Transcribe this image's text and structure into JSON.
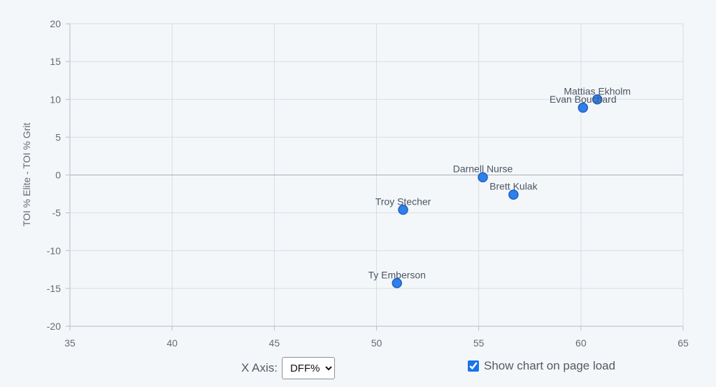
{
  "chart_data": {
    "type": "scatter",
    "title": "",
    "xlabel": "",
    "ylabel": "TOI % Elite - TOI % Grit",
    "xlim": [
      35,
      65
    ],
    "ylim": [
      -20,
      20
    ],
    "xticks": [
      35,
      40,
      45,
      50,
      55,
      60,
      65
    ],
    "yticks": [
      -20,
      -15,
      -10,
      -5,
      0,
      5,
      10,
      15,
      20
    ],
    "grid": true,
    "points": [
      {
        "label": "Mattias Ekholm",
        "x": 60.8,
        "y": 10.0
      },
      {
        "label": "Evan Bouchard",
        "x": 60.1,
        "y": 8.9
      },
      {
        "label": "Darnell Nurse",
        "x": 55.2,
        "y": -0.3
      },
      {
        "label": "Brett Kulak",
        "x": 56.7,
        "y": -2.6
      },
      {
        "label": "Troy Stecher",
        "x": 51.3,
        "y": -4.6
      },
      {
        "label": "Ty Emberson",
        "x": 51.0,
        "y": -14.3
      }
    ],
    "colors": {
      "point": "#2f80ed",
      "point_border": "#1c5fc2"
    }
  },
  "controls": {
    "x_axis_label": "X Axis:",
    "x_axis_selected": "DFF%",
    "show_chart_label": "Show chart on page load",
    "show_chart_checked": true
  }
}
